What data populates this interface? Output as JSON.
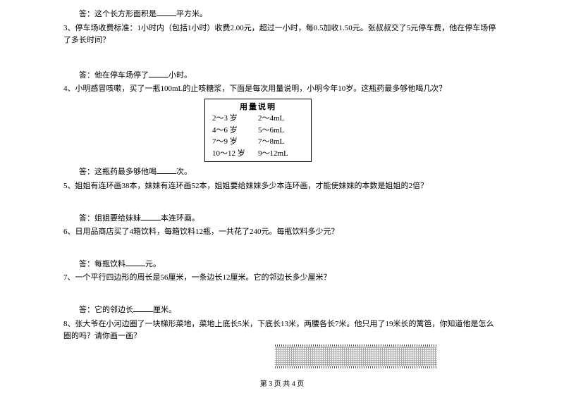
{
  "q2_ans": "答：这个长方形面积是____平方米。",
  "q3": "3、停车场收费标准：1小时内（包括1小时）收费2.00元，超过一小时，每0.5加收1.50元。张叔叔交了5元停车费，他在停车场停了多长时间？",
  "q3_ans": "答：他在停车场停了____小时。",
  "q4": "4、小明感冒咳嗽，买了一瓶100mL的止咳糖浆，下面是每次用量说明，小明今年10岁。这瓶药最多够他喝几次？",
  "dosage": {
    "title": "用量说明",
    "rows": [
      {
        "age": "2～3 岁",
        "dose": "2～4mL"
      },
      {
        "age": "4～6 岁",
        "dose": "5～6mL"
      },
      {
        "age": "7～9 岁",
        "dose": "7～8mL"
      },
      {
        "age": "10～12 岁",
        "dose": "9～12mL"
      }
    ]
  },
  "q4_ans": "答：这瓶药最多够他喝____次。",
  "q5": "5、姐姐有连环画38本，妹妹有连环画52本，姐姐要给妹妹多少本连环画，才能使妹妹的本数是姐姐的2倍？",
  "q5_ans": "答：姐姐要给妹妹____本连环画。",
  "q6": "6、日用品商店买了4箱饮料，每箱饮料12瓶，一共花了240元。每瓶饮料多少元？",
  "q6_ans": "答：每瓶饮料____元。",
  "q7": "7、一个平行四边形的周长是56厘米，一条边长12厘米。它的邻边长多少厘米？",
  "q7_ans": "答：它的邻边长____厘米。",
  "q8": "8、张大爷在小河边圈了一块梯形菜地，菜地上底长5米，下底长13米，两腰各长7米。他只用了19米长的篱笆，你知道他是怎么圈的吗？请你画一画？",
  "footer": "第 3 页 共 4 页"
}
